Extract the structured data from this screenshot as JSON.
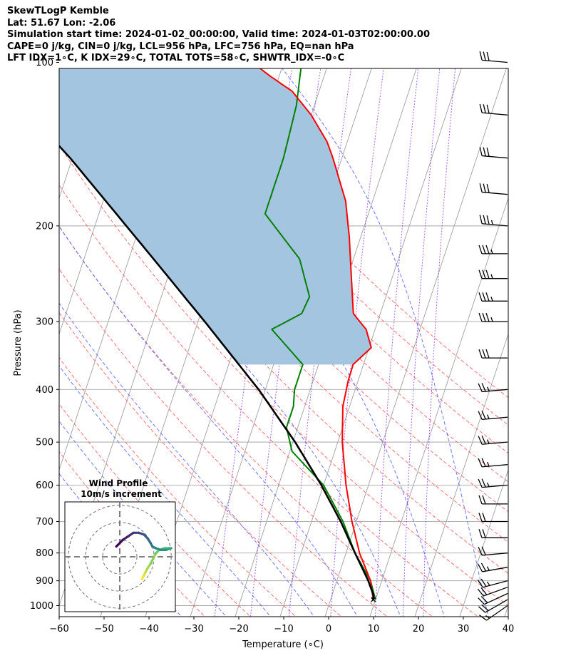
{
  "header": {
    "line1": "SkewTLogP Kemble",
    "line2": "Lat: 51.67   Lon: -2.06",
    "line3": "Simulation start time: 2024-01-02_00:00:00, Valid time: 2024-01-03T02:00:00.00",
    "line4": "CAPE=0 j/kg, CIN=0 j/kg, LCL=956 hPa, LFC=756 hPa, EQ=nan hPa",
    "line5": "LFT IDX=1∘C, K IDX=29∘C, TOTAL TOTS=58∘C, SHWTR_IDX=-0∘C"
  },
  "chart_data": {
    "type": "line",
    "title": "SkewTLogP Kemble",
    "xlabel": "Temperature (∘C)",
    "ylabel": "Pressure (hPa)",
    "xlim": [
      -60,
      40
    ],
    "ylim": [
      1040,
      100
    ],
    "xticks": [
      -60,
      -50,
      -40,
      -30,
      -20,
      -10,
      0,
      10,
      20,
      30,
      40
    ],
    "xtick_labels": [
      "−60",
      "−50",
      "−40",
      "−30",
      "−20",
      "−10",
      "0",
      "10",
      "20",
      "30",
      "40"
    ],
    "yticks": [
      1000,
      900,
      800,
      700,
      600,
      500,
      400,
      300,
      200,
      100
    ],
    "ytick_labels": [
      "1000",
      "900",
      "800",
      "700",
      "600",
      "500",
      "400",
      "300",
      "200",
      "100"
    ],
    "skew_deg_per_decade_log10": 40,
    "series": [
      {
        "name": "Temperature",
        "color": "#ff0000",
        "points": [
          [
            975,
            9.5
          ],
          [
            900,
            7.5
          ],
          [
            800,
            3.0
          ],
          [
            700,
            -1.0
          ],
          [
            600,
            -5.0
          ],
          [
            500,
            -9.0
          ],
          [
            430,
            -11.5
          ],
          [
            385,
            -12.2
          ],
          [
            360,
            -12.3
          ],
          [
            335,
            -9.5
          ],
          [
            310,
            -12.0
          ],
          [
            290,
            -16.0
          ],
          [
            250,
            -19.0
          ],
          [
            210,
            -22.5
          ],
          [
            180,
            -26.0
          ],
          [
            150,
            -32.0
          ],
          [
            140,
            -34.5
          ],
          [
            125,
            -40.0
          ],
          [
            113,
            -46.0
          ],
          [
            106,
            -52.0
          ],
          [
            100,
            -57.0
          ]
        ]
      },
      {
        "name": "Dewpoint",
        "color": "#008000",
        "points": [
          [
            975,
            10.0
          ],
          [
            900,
            7.5
          ],
          [
            800,
            2.0
          ],
          [
            700,
            -3.0
          ],
          [
            600,
            -10.0
          ],
          [
            520,
            -19.5
          ],
          [
            470,
            -22.5
          ],
          [
            430,
            -22.5
          ],
          [
            400,
            -23.5
          ],
          [
            360,
            -23.5
          ],
          [
            310,
            -33.0
          ],
          [
            290,
            -27.5
          ],
          [
            270,
            -27.0
          ],
          [
            230,
            -32.0
          ],
          [
            190,
            -43.0
          ],
          [
            170,
            -43.0
          ],
          [
            150,
            -43.0
          ],
          [
            120,
            -44.0
          ],
          [
            100,
            -46.0
          ]
        ]
      },
      {
        "name": "Parcel profile",
        "color": "#000000",
        "points": [
          [
            975,
            9.5
          ],
          [
            956,
            9.2
          ],
          [
            900,
            7.0
          ],
          [
            800,
            2.0
          ],
          [
            700,
            -3.5
          ],
          [
            600,
            -10.5
          ],
          [
            500,
            -19.5
          ],
          [
            400,
            -31.5
          ],
          [
            300,
            -48.5
          ],
          [
            250,
            -59.5
          ],
          [
            200,
            -73.0
          ],
          [
            150,
            -90.5
          ],
          [
            100,
            -117.0
          ]
        ]
      }
    ],
    "shaded_area": {
      "name": "CAPE region",
      "between": [
        "Parcel profile",
        "Temperature"
      ],
      "p_range": [
        360,
        100
      ],
      "color": "#a3c5df"
    },
    "dry_adiabats_theta_C": [
      -30,
      -20,
      -10,
      0,
      10,
      20,
      30,
      40,
      50,
      60,
      70,
      80,
      90,
      100,
      110
    ],
    "moist_adiabats_T1000_C": [
      -35,
      -25,
      -15,
      -5,
      5,
      15,
      25,
      35
    ],
    "mixing_ratio_lines_gkg": [
      0.5,
      1,
      2,
      4,
      8,
      12,
      16
    ],
    "isotherms_C": [
      -100,
      -90,
      -80,
      -70,
      -60,
      -50,
      -40,
      -30,
      -20,
      -10,
      0,
      10,
      20,
      30,
      40
    ],
    "wind_barbs": {
      "pressures": [
        1000,
        975,
        950,
        925,
        900,
        850,
        800,
        750,
        700,
        650,
        600,
        550,
        500,
        450,
        400,
        350,
        300,
        275,
        250,
        225,
        200,
        175,
        150,
        125,
        100
      ],
      "speed_kt": [
        15,
        20,
        20,
        20,
        25,
        25,
        20,
        20,
        20,
        20,
        25,
        25,
        25,
        25,
        25,
        30,
        35,
        35,
        35,
        35,
        35,
        30,
        30,
        30,
        30
      ],
      "direction_deg": [
        235,
        240,
        245,
        250,
        255,
        260,
        265,
        270,
        270,
        270,
        265,
        265,
        265,
        265,
        265,
        270,
        270,
        270,
        270,
        270,
        275,
        275,
        275,
        275,
        275
      ]
    },
    "inset": {
      "title": "Wind Profile",
      "subtitle": "10m/s increment",
      "ring_radii_ms": [
        10,
        20,
        30
      ],
      "range_ms": 32,
      "hodograph_uv_ms": [
        [
          13,
          -13
        ],
        [
          14,
          -11
        ],
        [
          15,
          -9
        ],
        [
          16,
          -7
        ],
        [
          18,
          -4
        ],
        [
          21,
          2
        ],
        [
          23,
          4
        ],
        [
          26,
          5
        ],
        [
          29,
          5
        ],
        [
          30,
          5
        ],
        [
          27,
          4
        ],
        [
          24,
          4
        ],
        [
          21,
          5
        ],
        [
          19,
          6
        ],
        [
          18,
          8
        ],
        [
          16,
          11
        ],
        [
          14,
          13
        ],
        [
          11,
          14
        ],
        [
          8,
          14
        ],
        [
          5,
          12
        ],
        [
          2,
          10
        ],
        [
          0,
          8
        ],
        [
          -2,
          6
        ]
      ]
    }
  }
}
